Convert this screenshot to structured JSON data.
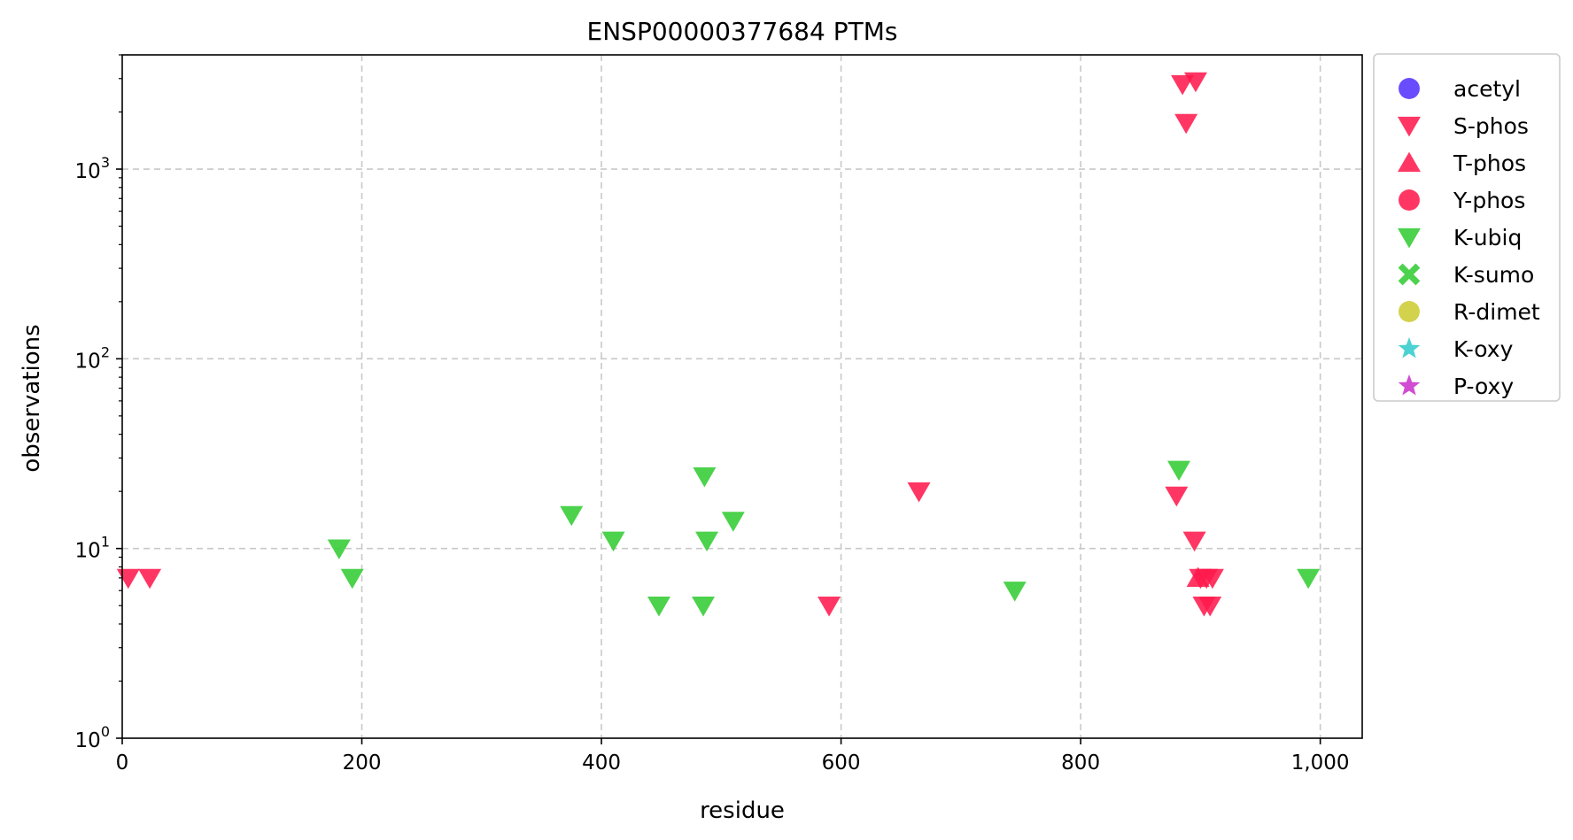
{
  "chart_data": {
    "type": "scatter",
    "title": "ENSP00000377684 PTMs",
    "xlabel": "residue",
    "ylabel": "observations",
    "y_scale": "log",
    "xlim": [
      0,
      1035
    ],
    "ylim": [
      1,
      4000
    ],
    "x_ticks": [
      0,
      200,
      400,
      600,
      800,
      1000
    ],
    "x_tick_labels": [
      "0",
      "200",
      "400",
      "600",
      "800",
      "1,000"
    ],
    "y_ticks": [
      {
        "value": 1,
        "base": "10",
        "exp": "0"
      },
      {
        "value": 10,
        "base": "10",
        "exp": "1"
      },
      {
        "value": 100,
        "base": "10",
        "exp": "2"
      },
      {
        "value": 1000,
        "base": "10",
        "exp": "3"
      }
    ],
    "grid": true,
    "legend_position": "outside-right-top",
    "series": [
      {
        "name": "acetyl",
        "marker": "circle",
        "color": "#5533ff",
        "points": []
      },
      {
        "name": "S-phos",
        "marker": "triangle-down",
        "color": "#ff1a4d",
        "points": [
          {
            "x": 5,
            "y": 7
          },
          {
            "x": 23,
            "y": 7
          },
          {
            "x": 590,
            "y": 5
          },
          {
            "x": 665,
            "y": 20
          },
          {
            "x": 880,
            "y": 19
          },
          {
            "x": 885,
            "y": 2800
          },
          {
            "x": 888,
            "y": 1750
          },
          {
            "x": 895,
            "y": 11
          },
          {
            "x": 896,
            "y": 2900
          },
          {
            "x": 900,
            "y": 7
          },
          {
            "x": 903,
            "y": 5
          },
          {
            "x": 905,
            "y": 7
          },
          {
            "x": 908,
            "y": 5
          },
          {
            "x": 910,
            "y": 7
          }
        ]
      },
      {
        "name": "T-phos",
        "marker": "triangle-up",
        "color": "#ff1a4d",
        "points": [
          {
            "x": 898,
            "y": 7
          }
        ]
      },
      {
        "name": "Y-phos",
        "marker": "circle",
        "color": "#ff1a4d",
        "points": []
      },
      {
        "name": "K-ubiq",
        "marker": "triangle-down",
        "color": "#33cc33",
        "points": [
          {
            "x": 181,
            "y": 10
          },
          {
            "x": 192,
            "y": 7
          },
          {
            "x": 375,
            "y": 15
          },
          {
            "x": 410,
            "y": 11
          },
          {
            "x": 448,
            "y": 5
          },
          {
            "x": 485,
            "y": 5
          },
          {
            "x": 486,
            "y": 24
          },
          {
            "x": 488,
            "y": 11
          },
          {
            "x": 510,
            "y": 14
          },
          {
            "x": 745,
            "y": 6
          },
          {
            "x": 882,
            "y": 26
          },
          {
            "x": 990,
            "y": 7
          }
        ]
      },
      {
        "name": "K-sumo",
        "marker": "x-thick",
        "color": "#33cc33",
        "points": []
      },
      {
        "name": "R-dimet",
        "marker": "circle",
        "color": "#cccc33",
        "points": []
      },
      {
        "name": "K-oxy",
        "marker": "star",
        "color": "#33cccc",
        "points": []
      },
      {
        "name": "P-oxy",
        "marker": "star",
        "color": "#cc33cc",
        "points": []
      }
    ]
  }
}
